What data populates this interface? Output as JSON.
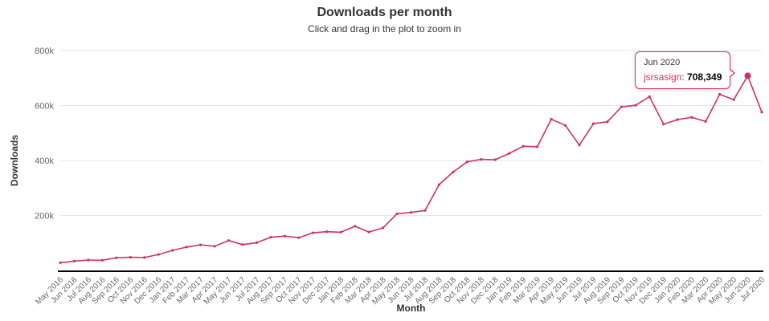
{
  "header": {
    "title": "Downloads per month",
    "subtitle": "Click and drag in the plot to zoom in"
  },
  "tooltip": {
    "header": "Jun 2020",
    "series_name": "jsrsasign",
    "separator": ": ",
    "value": "708,349"
  },
  "colors": {
    "accent": "#cf3458",
    "grid": "#e6e6e6",
    "axis_text": "#666666",
    "axis_title_text": "#333333",
    "axis_line": "#000000"
  },
  "chart_data": {
    "type": "line",
    "title": "Downloads per month",
    "subtitle": "Click and drag in the plot to zoom in",
    "xlabel": "Month",
    "ylabel": "Downloads",
    "legend": false,
    "grid": true,
    "ylim": [
      0,
      800000
    ],
    "yticks": [
      {
        "value": 200000,
        "label": "200k"
      },
      {
        "value": 400000,
        "label": "400k"
      },
      {
        "value": 600000,
        "label": "600k"
      },
      {
        "value": 800000,
        "label": "800k"
      }
    ],
    "categories": [
      "May 2016",
      "Jun 2016",
      "Jul 2016",
      "Aug 2016",
      "Sep 2016",
      "Oct 2016",
      "Nov 2016",
      "Dec 2016",
      "Jan 2017",
      "Feb 2017",
      "Mar 2017",
      "Apr 2017",
      "May 2017",
      "Jun 2017",
      "Jul 2017",
      "Aug 2017",
      "Sep 2017",
      "Oct 2017",
      "Nov 2017",
      "Dec 2017",
      "Jan 2018",
      "Feb 2018",
      "Mar 2018",
      "Apr 2018",
      "May 2018",
      "Jun 2018",
      "Jul 2018",
      "Aug 2018",
      "Sep 2018",
      "Oct 2018",
      "Nov 2018",
      "Dec 2018",
      "Jan 2019",
      "Feb 2019",
      "Mar 2019",
      "Apr 2019",
      "May 2019",
      "Jun 2019",
      "Jul 2019",
      "Aug 2019",
      "Sep 2019",
      "Oct 2019",
      "Nov 2019",
      "Dec 2019",
      "Jan 2020",
      "Feb 2020",
      "Mar 2020",
      "Apr 2020",
      "May 2020",
      "Jun 2020",
      "Jul 2020"
    ],
    "series": [
      {
        "name": "jsrsasign",
        "color": "#cf3458",
        "values": [
          28000,
          34000,
          38000,
          37000,
          46000,
          48000,
          47000,
          58000,
          73000,
          85000,
          93000,
          88000,
          109000,
          94000,
          101000,
          121000,
          125000,
          119000,
          137000,
          141000,
          139000,
          161000,
          140000,
          155000,
          206000,
          211000,
          218000,
          312000,
          358000,
          395000,
          404000,
          403000,
          426000,
          452000,
          450000,
          550000,
          528000,
          456000,
          534000,
          541000,
          595000,
          601000,
          632000,
          532000,
          549000,
          557000,
          542000,
          641000,
          621000,
          708349,
          576000
        ]
      }
    ],
    "highlight": {
      "category": "Jun 2020",
      "value": 708349
    }
  }
}
